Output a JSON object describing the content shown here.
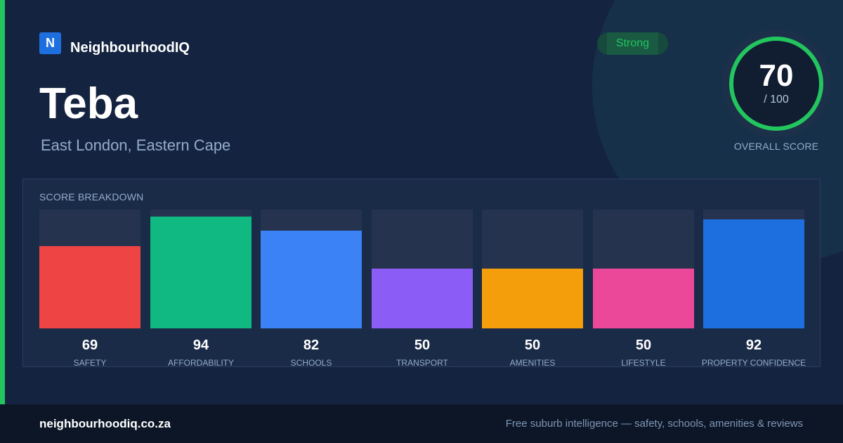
{
  "brand": {
    "logo_letter": "N",
    "name": "NeighbourhoodIQ",
    "logo_color": "#1d6fe0"
  },
  "suburb": {
    "name": "Teba",
    "location": "East London, Eastern Cape"
  },
  "rating": {
    "label": "Strong",
    "color": "#22c55e"
  },
  "overall": {
    "score": "70",
    "max_text": "/ 100",
    "label": "OVERALL SCORE",
    "value": 70,
    "max": 100,
    "ring_color": "#22c55e"
  },
  "breakdown": {
    "title": "SCORE BREAKDOWN"
  },
  "chart_data": {
    "type": "bar",
    "title": "SCORE BREAKDOWN",
    "ylim": [
      0,
      100
    ],
    "grid": false,
    "categories": [
      "SAFETY",
      "AFFORDABILITY",
      "SCHOOLS",
      "TRANSPORT",
      "AMENITIES",
      "LIFESTYLE",
      "PROPERTY CONFIDENCE"
    ],
    "values": [
      69,
      94,
      82,
      50,
      50,
      50,
      92
    ],
    "colors": [
      "#ef4444",
      "#10b981",
      "#3b82f6",
      "#8b5cf6",
      "#f59e0b",
      "#ec4899",
      "#1d6fe0"
    ]
  },
  "footer": {
    "domain": "neighbourhoodiq.co.za",
    "tagline": "Free suburb intelligence — safety, schools, amenities & reviews"
  }
}
